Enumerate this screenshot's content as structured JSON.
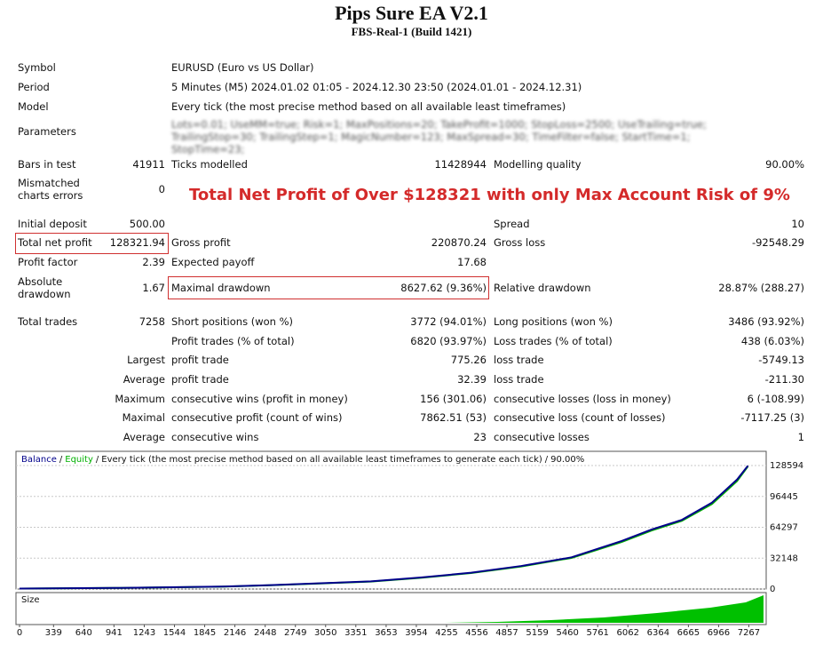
{
  "header": {
    "title": "Pips Sure EA V2.1",
    "subtitle": "FBS-Real-1 (Build 1421)"
  },
  "info": [
    {
      "label": "Symbol",
      "value": "EURUSD (Euro vs US Dollar)"
    },
    {
      "label": "Period",
      "value": "5 Minutes (M5) 2024.01.02 01:05 - 2024.12.30 23:50 (2024.01.01 - 2024.12.31)"
    },
    {
      "label": "Model",
      "value": "Every tick (the most precise method based on all available least timeframes)"
    },
    {
      "label": "Parameters",
      "value": "Lots=0.01; UseMM=true; Risk=1; MaxPositions=20; TakeProfit=1000; StopLoss=2500; UseTrailing=true; TrailingStop=30; TrailingStep=1; MagicNumber=123; MaxSpread=30; TimeFilter=false; StartTime=1; StopTime=23;"
    }
  ],
  "headline": "Total Net Profit of Over $128321 with only Max Account Risk of 9%",
  "stats": [
    {
      "col1": {
        "label": "Bars in test",
        "value": "41911"
      },
      "col2": {
        "label": "Ticks modelled",
        "value": "11428944"
      },
      "col3": {
        "label": "Modelling quality",
        "value": "90.00%"
      }
    },
    {
      "col1": {
        "label": "Mismatched\ncharts errors",
        "value": "0"
      }
    },
    {
      "col1": {
        "label": "Initial deposit",
        "value": "500.00"
      },
      "col3": {
        "label": "Spread",
        "value": "10"
      }
    },
    {
      "col1": {
        "label": "Total net profit",
        "value": "128321.94"
      },
      "col2": {
        "label": "Gross profit",
        "value": "220870.24"
      },
      "col3": {
        "label": "Gross loss",
        "value": "-92548.29"
      }
    },
    {
      "col1": {
        "label": "Profit factor",
        "value": "2.39"
      },
      "col2": {
        "label": "Expected payoff",
        "value": "17.68"
      }
    },
    {
      "col1": {
        "label": "Absolute\ndrawdown",
        "value": "1.67"
      },
      "col2": {
        "label": "Maximal drawdown",
        "value": "8627.62 (9.36%)"
      },
      "col3": {
        "label": "Relative drawdown",
        "value": "28.87% (288.27)"
      }
    },
    {
      "col1": {
        "label": "Total trades",
        "value": "7258"
      },
      "col2": {
        "label": "Short positions (won %)",
        "value": "3772 (94.01%)"
      },
      "col3": {
        "label": "Long positions (won %)",
        "value": "3486 (93.92%)"
      }
    },
    {
      "col2": {
        "label": "Profit trades (% of total)",
        "value": "6820 (93.97%)"
      },
      "col3": {
        "label": "Loss trades (% of total)",
        "value": "438 (6.03%)"
      }
    },
    {
      "lead": "Largest",
      "col2": {
        "label": "profit trade",
        "value": "775.26"
      },
      "col3": {
        "label": "loss trade",
        "value": "-5749.13"
      }
    },
    {
      "lead": "Average",
      "col2": {
        "label": "profit trade",
        "value": "32.39"
      },
      "col3": {
        "label": "loss trade",
        "value": "-211.30"
      }
    },
    {
      "lead": "Maximum",
      "col2": {
        "label": "consecutive wins (profit in money)",
        "value": "156 (301.06)"
      },
      "col3": {
        "label": "consecutive losses (loss in money)",
        "value": "6 (-108.99)"
      }
    },
    {
      "lead": "Maximal",
      "col2": {
        "label": "consecutive profit (count of wins)",
        "value": "7862.51 (53)"
      },
      "col3": {
        "label": "consecutive loss (count of losses)",
        "value": "-7117.25 (3)"
      }
    },
    {
      "lead": "Average",
      "col2": {
        "label": "consecutive wins",
        "value": "23"
      },
      "col3": {
        "label": "consecutive losses",
        "value": "1"
      }
    }
  ],
  "chart_data": {
    "type": "line",
    "legend_separator": "/",
    "legend_note": "Every tick (the most precise method based on all available least timeframes to generate each tick)",
    "quality": "90.00%",
    "size_label": "Size",
    "x": [
      0,
      1000,
      2000,
      2500,
      3000,
      3500,
      4000,
      4500,
      5000,
      5500,
      6000,
      6300,
      6600,
      6900,
      7150,
      7258
    ],
    "series": [
      {
        "name": "Equity",
        "color": "#00b000",
        "values": [
          500,
          1150,
          2400,
          3900,
          5800,
          7800,
          11700,
          16600,
          23500,
          32400,
          49000,
          61000,
          71000,
          88500,
          112500,
          127800
        ]
      },
      {
        "name": "Balance",
        "color": "#00008b",
        "values": [
          500,
          1200,
          2500,
          4000,
          6000,
          8000,
          12000,
          17000,
          24000,
          33000,
          50000,
          62000,
          72000,
          90000,
          114000,
          128321
        ]
      }
    ],
    "xlim": [
      0,
      7440
    ],
    "ylim": [
      0,
      143400
    ],
    "xticks": [
      0,
      339,
      640,
      941,
      1243,
      1544,
      1845,
      2146,
      2448,
      2749,
      3050,
      3351,
      3653,
      3954,
      4255,
      4556,
      4857,
      5159,
      5460,
      5761,
      6062,
      6364,
      6665,
      6966,
      7267
    ],
    "yticks": [
      0,
      32148,
      64297,
      96445,
      128594
    ]
  }
}
